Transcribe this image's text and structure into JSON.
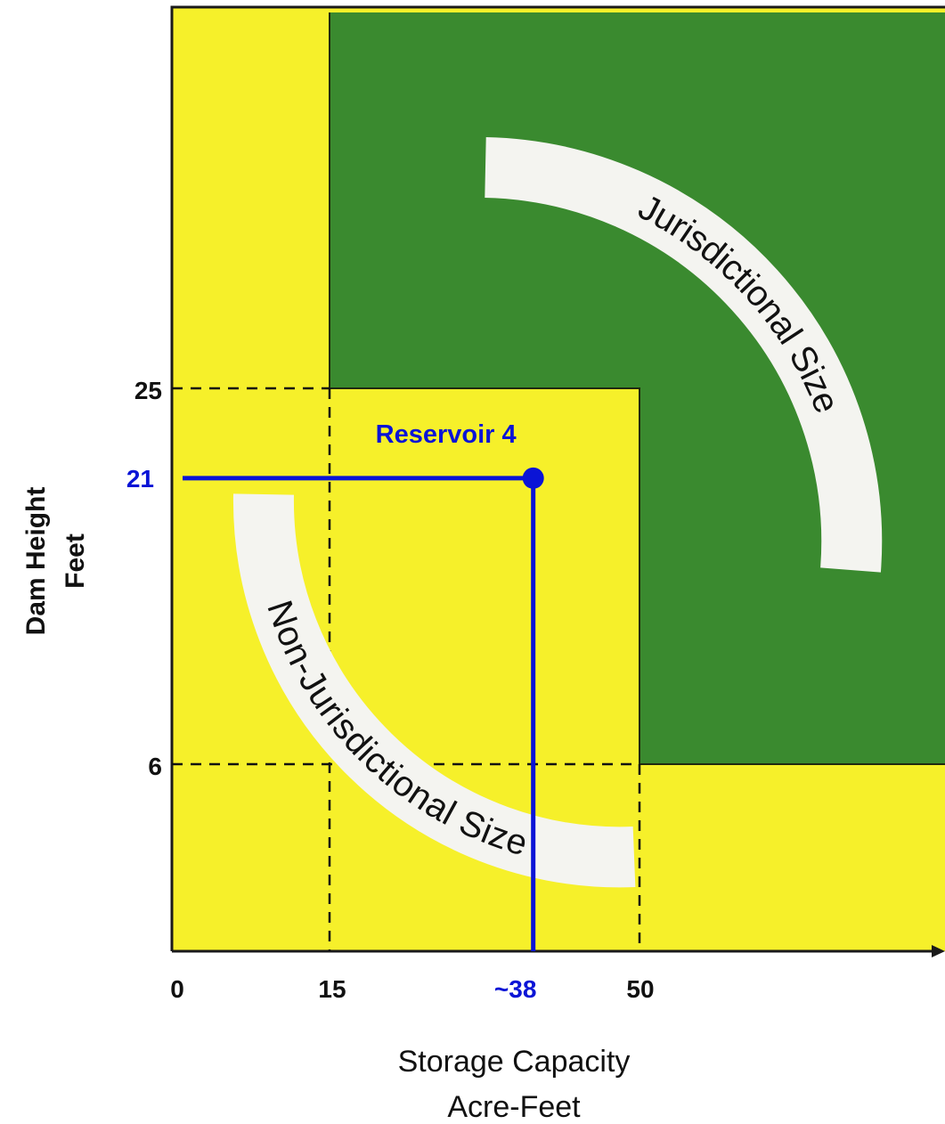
{
  "diagram": {
    "x_axis": {
      "title_line1": "Storage Capacity",
      "title_line2": "Acre-Feet",
      "ticks": [
        "0",
        "15",
        "50"
      ],
      "marker_tick": "~38"
    },
    "y_axis": {
      "title_line1": "Dam Height",
      "title_line2": "Feet",
      "ticks": [
        "25",
        "6"
      ],
      "marker_tick": "21"
    },
    "regions": {
      "jurisdictional_label": "Jurisdictional Size",
      "non_jurisdictional_label": "Non-Jurisdictional Size"
    },
    "point": {
      "label": "Reservoir 4",
      "storage_capacity": 38,
      "dam_height": 21
    },
    "thresholds": {
      "storage_capacity": [
        15,
        50
      ],
      "dam_height": [
        6,
        25
      ]
    },
    "colors": {
      "jurisdictional": "#3a8a2f",
      "non_jurisdictional": "#f6f02a",
      "marker": "#0a14d6",
      "band": "#f4f4f0"
    }
  }
}
